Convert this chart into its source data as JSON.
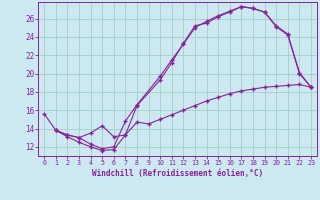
{
  "xlabel": "Windchill (Refroidissement éolien,°C)",
  "bg_color": "#cce8f0",
  "grid_color": "#99ccbb",
  "line_color": "#882299",
  "xlim": [
    -0.5,
    23.5
  ],
  "ylim": [
    11.0,
    27.8
  ],
  "xticks": [
    0,
    1,
    2,
    3,
    4,
    5,
    6,
    7,
    8,
    9,
    10,
    11,
    12,
    13,
    14,
    15,
    16,
    17,
    18,
    19,
    20,
    21,
    22,
    23
  ],
  "yticks": [
    12,
    14,
    16,
    18,
    20,
    22,
    24,
    26
  ],
  "line1_x": [
    0,
    1,
    2,
    3,
    4,
    5,
    6,
    7,
    8,
    10,
    11,
    12,
    13,
    14,
    15,
    16,
    17,
    18,
    19,
    20,
    21,
    22,
    23
  ],
  "line1_y": [
    15.6,
    13.8,
    13.1,
    12.5,
    12.0,
    11.6,
    11.7,
    13.3,
    16.5,
    19.3,
    21.2,
    23.3,
    25.2,
    25.5,
    26.2,
    26.7,
    27.3,
    27.1,
    26.7,
    25.1,
    24.2,
    20.0,
    18.5
  ],
  "line2_x": [
    1,
    2,
    3,
    4,
    5,
    6,
    7,
    8,
    10,
    11,
    12,
    13,
    14,
    15,
    16,
    17,
    18,
    19,
    20,
    21,
    22,
    23
  ],
  "line2_y": [
    13.8,
    13.3,
    13.0,
    12.3,
    11.8,
    12.0,
    14.8,
    16.6,
    19.7,
    21.5,
    23.2,
    25.0,
    25.7,
    26.3,
    26.8,
    27.3,
    27.1,
    26.7,
    25.2,
    24.3,
    20.1,
    18.5
  ],
  "line3_x": [
    1,
    2,
    3,
    4,
    5,
    6,
    7,
    8,
    9,
    10,
    11,
    12,
    13,
    14,
    15,
    16,
    17,
    18,
    19,
    20,
    21,
    22,
    23
  ],
  "line3_y": [
    13.8,
    13.3,
    13.0,
    13.5,
    14.3,
    13.1,
    13.3,
    14.7,
    14.5,
    15.0,
    15.5,
    16.0,
    16.5,
    17.0,
    17.4,
    17.8,
    18.1,
    18.3,
    18.5,
    18.6,
    18.7,
    18.8,
    18.5
  ],
  "marker": "+"
}
